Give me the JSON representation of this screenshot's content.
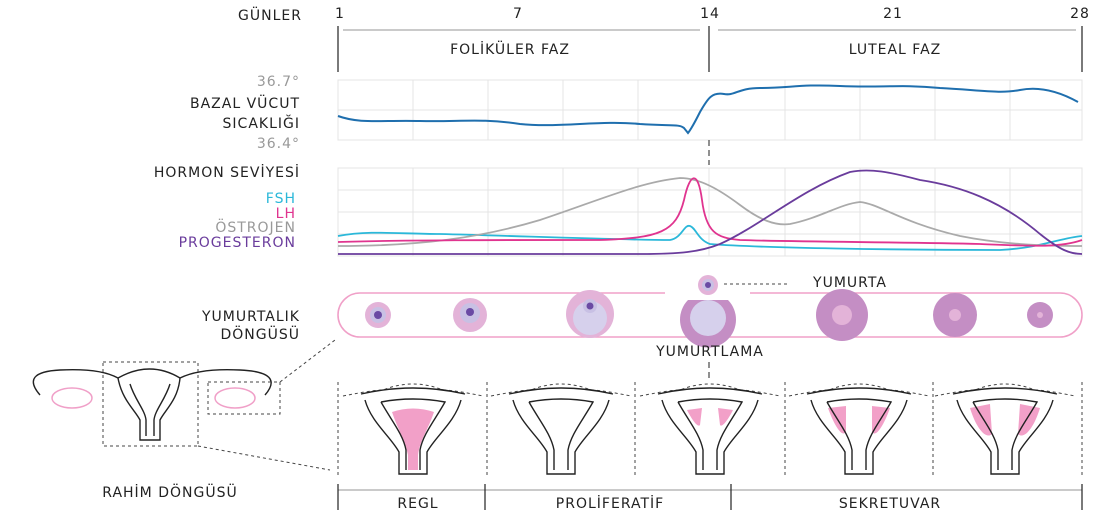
{
  "days": {
    "label": "GÜNLER",
    "ticks": [
      "1",
      "7",
      "14",
      "21",
      "28"
    ]
  },
  "phases": [
    "FOLİKÜLER FAZ",
    "LUTEAL FAZ"
  ],
  "temperature": {
    "label_lines": [
      "BAZAL VÜCUT",
      "SICAKLIĞI"
    ],
    "max": "36.7°",
    "min": "36.4°"
  },
  "hormones": {
    "title": "HORMON SEVİYESİ",
    "legend": [
      "FSH",
      "LH",
      "ÖSTROJEN",
      "PROGESTERON"
    ]
  },
  "ovary": {
    "label_lines": [
      "YUMURTALIK",
      "DÖNGÜSÜ"
    ],
    "egg": "YUMURTA",
    "ovulation": "YUMURTLAMA"
  },
  "uterus": {
    "label": "RAHİM DÖNGÜSÜ",
    "phases": [
      "REGL",
      "PROLİFERATİF",
      "SEKRETUVAR"
    ]
  }
}
